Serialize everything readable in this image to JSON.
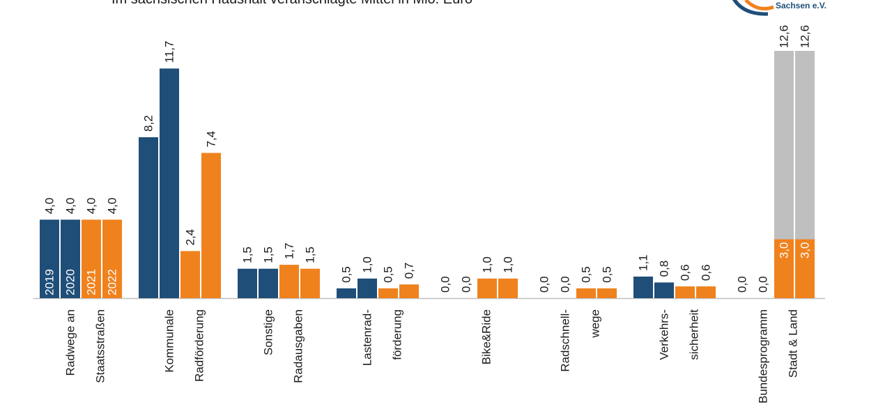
{
  "title": "Im sächsischen Haushalt veranschlagte Mittel in Mio. Euro",
  "logo": {
    "text": "Sachsen e.V."
  },
  "colors": {
    "dark_blue": "#1f4e79",
    "orange": "#f0821e",
    "gray": "#bfbfbf",
    "axis": "#bfbfbf"
  },
  "chart_data": {
    "type": "bar",
    "title": "Im sächsischen Haushalt veranschlagte Mittel in Mio. Euro",
    "xlabel": "",
    "ylabel": "",
    "ylim": [
      0,
      13
    ],
    "grid": false,
    "legend": "inline year labels inside first group bars",
    "years": [
      "2019",
      "2020",
      "2021",
      "2022"
    ],
    "categories": [
      {
        "lines": [
          "Radwege  an",
          "Staatsstraßen"
        ],
        "values": [
          "4,0",
          "4,0",
          "4,0",
          "4,0"
        ]
      },
      {
        "lines": [
          "Kommunale",
          "Radförderung"
        ],
        "values": [
          "8,2",
          "11,7",
          "2,4",
          "7,4"
        ]
      },
      {
        "lines": [
          "Sonstige",
          "Radausgaben"
        ],
        "values": [
          "1,5",
          "1,5",
          "1,7",
          "1,5"
        ]
      },
      {
        "lines": [
          "Lastenrad-",
          "förderung"
        ],
        "values": [
          "0,5",
          "1,0",
          "0,5",
          "0,7"
        ]
      },
      {
        "lines": [
          "Bike&Ride"
        ],
        "values": [
          "0,0",
          "0,0",
          "1,0",
          "1,0"
        ]
      },
      {
        "lines": [
          "Radschnell-",
          "wege"
        ],
        "values": [
          "0,0",
          "0,0",
          "0,5",
          "0,5"
        ]
      },
      {
        "lines": [
          "Verkehrs-",
          "sicherheit"
        ],
        "values": [
          "1,1",
          "0,8",
          "0,6",
          "0,6"
        ]
      },
      {
        "lines": [
          "Bundesprogramm",
          "Stadt & Land"
        ],
        "values": [
          "0,0",
          "0,0",
          "3,0",
          "3,0"
        ]
      }
    ],
    "stacked_total": {
      "category": "Bundesprogramm",
      "series": [
        "2021",
        "2022"
      ],
      "values": [
        "12,6",
        "12,6"
      ]
    }
  }
}
